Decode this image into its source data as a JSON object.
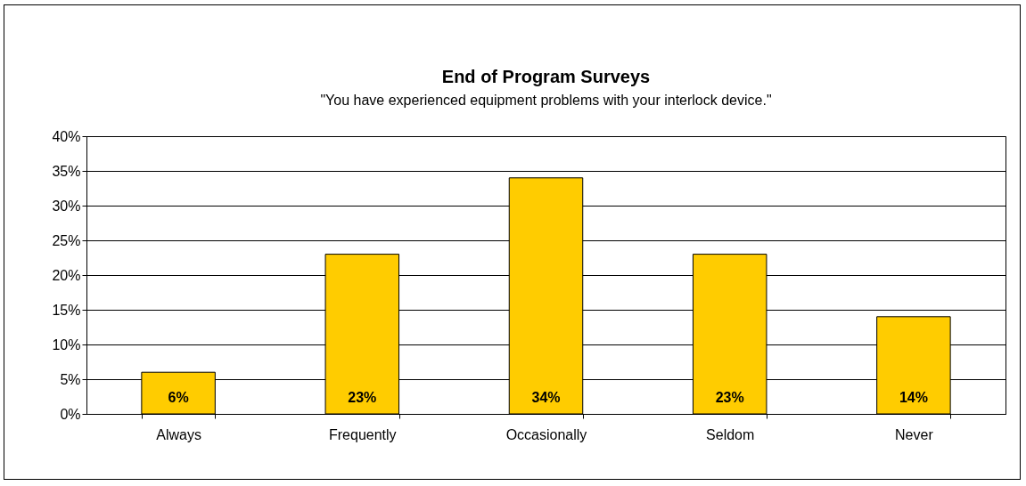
{
  "chart_data": {
    "type": "bar",
    "title": "End of Program Surveys",
    "subtitle": "\"You have experienced equipment problems with your interlock device.\"",
    "categories": [
      "Always",
      "Frequently",
      "Occasionally",
      "Seldom",
      "Never"
    ],
    "values": [
      6,
      23,
      34,
      23,
      14
    ],
    "value_labels": [
      "6%",
      "23%",
      "34%",
      "23%",
      "14%"
    ],
    "color": "#ffcc00",
    "ylim": [
      0,
      40
    ],
    "yticks": [
      {
        "value": 0,
        "label": "0%"
      },
      {
        "value": 5,
        "label": "5%"
      },
      {
        "value": 10,
        "label": "10%"
      },
      {
        "value": 15,
        "label": "15%"
      },
      {
        "value": 20,
        "label": "20%"
      },
      {
        "value": 25,
        "label": "25%"
      },
      {
        "value": 30,
        "label": "30%"
      },
      {
        "value": 35,
        "label": "35%"
      },
      {
        "value": 40,
        "label": "40%"
      }
    ],
    "grid": "y"
  }
}
